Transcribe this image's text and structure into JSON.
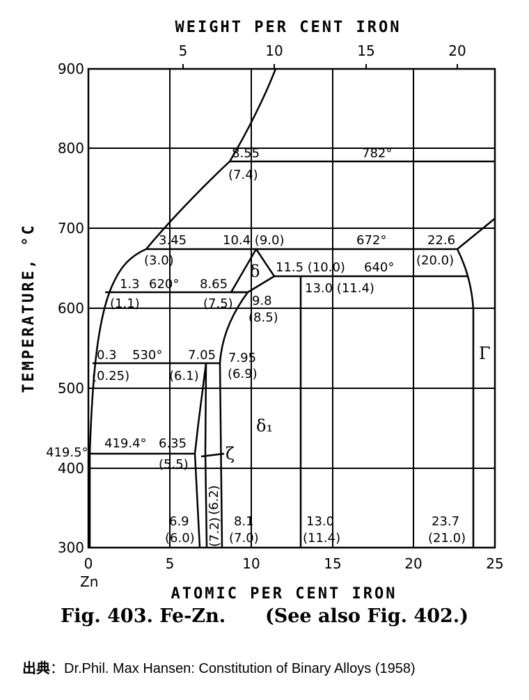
{
  "axes": {
    "top_title": "WEIGHT PER CENT IRON",
    "bottom_title": "ATOMIC PER CENT IRON",
    "left_title": "TEMPERATURE, °C",
    "zn_label": "Zn",
    "x_range": [
      0,
      25
    ],
    "y_range": [
      300,
      900
    ],
    "bottom_ticks": [
      "0",
      "5",
      "10",
      "15",
      "20",
      "25"
    ],
    "top_ticks": [
      "5",
      "10",
      "15",
      "20"
    ],
    "left_ticks": [
      "300",
      "400",
      "500",
      "600",
      "700",
      "800",
      "900"
    ]
  },
  "annotations": {
    "a_8_55": "8.55",
    "a_7_4": "(7.4)",
    "a_782": "782°",
    "a_3_45": "3.45",
    "a_10_4": "10.4 (9.0)",
    "a_672": "672°",
    "a_22_6": "22.6",
    "a_3_0": "(3.0)",
    "a_11_5": "11.5 (10.0)",
    "a_640": "640°",
    "a_20_0": "(20.0)",
    "a_1_3": "1.3",
    "a_620": "620°",
    "a_8_65": "8.65",
    "a_13_0": "13.0 (11.4)",
    "a_1_1": "(1.1)",
    "a_7_5": "(7.5)",
    "a_9_8": "9.8",
    "a_8_5": "(8.5)",
    "a_0_3": "0.3",
    "a_530": "530°",
    "a_7_05": "7.05",
    "a_7_95": "7.95",
    "a_0_25": "(0.25)",
    "a_6_1": "(6.1)",
    "a_6_9b": "(6.9)",
    "a_419_5": "419.5°",
    "a_419_4": "419.4°",
    "a_6_35": "6.35",
    "a_5_5": "(5.5)",
    "a_6_9": "6.9",
    "a_6_0": "(6.0)",
    "a_7_2": "(7.2)",
    "a_6_2": "(6.2)",
    "a_8_1": "8.1",
    "a_7_0": "(7.0)",
    "a_13_0b": "13.0",
    "a_11_4b": "(11.4)",
    "a_23_7": "23.7",
    "a_21_0": "(21.0)"
  },
  "phases": {
    "delta": "δ",
    "delta1": "δ₁",
    "zeta": "ζ",
    "gamma": "Γ"
  },
  "caption": {
    "fig": "Fig. 403. Fe-Zn.",
    "see_also": "(See also Fig. 402.)"
  },
  "source": {
    "label": "出典",
    "sep": "：",
    "text": "Dr.Phil. Max Hansen: Constitution of Binary Alloys (1958)"
  }
}
